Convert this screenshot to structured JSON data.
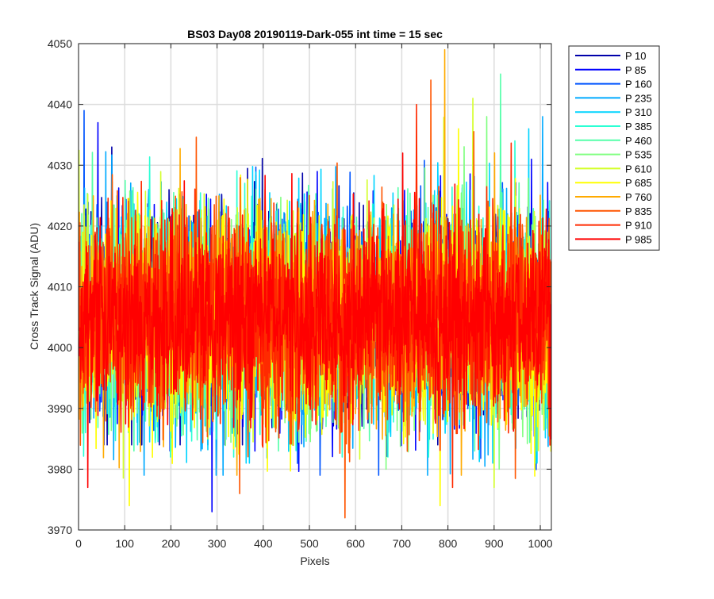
{
  "chart_data": {
    "type": "line",
    "title": "BS03 Day08 20190119-Dark-055 int time = 15 sec",
    "xlabel": "Pixels",
    "ylabel": "Cross Track Signal (ADU)",
    "xlim": [
      0,
      1024
    ],
    "ylim": [
      3970,
      4050
    ],
    "xticks": [
      "0",
      "100",
      "200",
      "300",
      "400",
      "500",
      "600",
      "700",
      "800",
      "900",
      "1000"
    ],
    "yticks": [
      "3970",
      "3980",
      "3990",
      "4000",
      "4010",
      "4020",
      "4030",
      "4040",
      "4050"
    ],
    "grid": true,
    "legend_position": "outside-top-right",
    "n_points_per_series": 1024,
    "series": [
      {
        "name": "P 10",
        "color": "#0000AA",
        "mean": 4005,
        "spread": 8.5,
        "min": 3984,
        "max": 4033
      },
      {
        "name": "P 85",
        "color": "#0000FF",
        "mean": 4005,
        "spread": 8.5,
        "min": 3973,
        "max": 4037
      },
      {
        "name": "P 160",
        "color": "#0055FF",
        "mean": 4005,
        "spread": 8.5,
        "min": 3979,
        "max": 4039
      },
      {
        "name": "P 235",
        "color": "#00AAFF",
        "mean": 4005,
        "spread": 8.5,
        "min": 3979,
        "max": 4038
      },
      {
        "name": "P 310",
        "color": "#00D4FF",
        "mean": 4005,
        "spread": 8.5,
        "min": 3981,
        "max": 4036
      },
      {
        "name": "P 385",
        "color": "#2BFFD4",
        "mean": 4005,
        "spread": 8.5,
        "min": 3982,
        "max": 4034
      },
      {
        "name": "P 460",
        "color": "#55FFAA",
        "mean": 4005,
        "spread": 8.5,
        "min": 3983,
        "max": 4045
      },
      {
        "name": "P 535",
        "color": "#80FF80",
        "mean": 4005,
        "spread": 8.5,
        "min": 3980,
        "max": 4038
      },
      {
        "name": "P 610",
        "color": "#D4FF2B",
        "mean": 4005,
        "spread": 8.5,
        "min": 3977,
        "max": 4041
      },
      {
        "name": "P 685",
        "color": "#FFFF00",
        "mean": 4005,
        "spread": 8.5,
        "min": 3974,
        "max": 4036
      },
      {
        "name": "P 760",
        "color": "#FFAA00",
        "mean": 4005,
        "spread": 8.5,
        "min": 3979,
        "max": 4049
      },
      {
        "name": "P 835",
        "color": "#FF5500",
        "mean": 4005,
        "spread": 8.5,
        "min": 3972,
        "max": 4044
      },
      {
        "name": "P 910",
        "color": "#FF2A00",
        "mean": 4005,
        "spread": 8.5,
        "min": 3977,
        "max": 4040
      },
      {
        "name": "P 985",
        "color": "#FF0000",
        "mean": 4005,
        "spread": 7.5,
        "min": 3977,
        "max": 4032
      }
    ]
  }
}
